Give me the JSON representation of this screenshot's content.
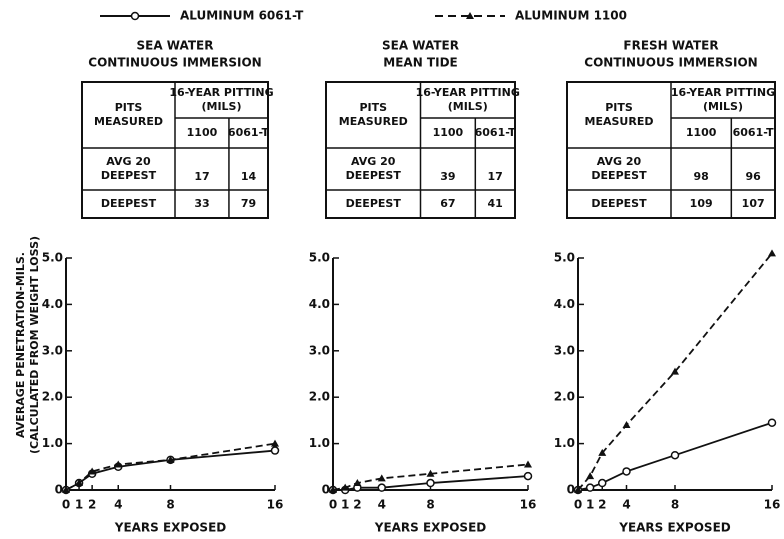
{
  "chart_data": [
    {
      "type": "line",
      "title": [
        "SEA WATER",
        "CONTINUOUS IMMERSION"
      ],
      "table": {
        "head": [
          "PITS MEASURED",
          "16-YEAR PITTING (MILS)"
        ],
        "sub": [
          "1100",
          "6061-T"
        ],
        "rows": [
          [
            "AVG 20 DEEPEST",
            "17",
            "14"
          ],
          [
            "DEEPEST",
            "33",
            "79"
          ]
        ]
      },
      "ylabel": [
        "AVERAGE PENETRATION-MILS.",
        "(CALCULATED FROM WEIGHT LOSS)"
      ],
      "xlabel": "YEARS EXPOSED",
      "x": [
        0,
        1,
        2,
        4,
        8,
        16
      ],
      "xlim": [
        0,
        16
      ],
      "xticks": [
        0,
        1,
        2,
        4,
        8,
        16
      ],
      "ylim": [
        0,
        5
      ],
      "yticks": [
        0,
        {
          "value": 1,
          "label": "1.0"
        },
        {
          "value": 2,
          "label": "2.0"
        },
        {
          "value": 3,
          "label": "3.0"
        },
        {
          "value": 4,
          "label": "4.0"
        },
        {
          "value": 5,
          "label": "5.0"
        }
      ],
      "series": [
        {
          "name": "ALUMINUM 6061-T",
          "color": "#111",
          "dash": false,
          "marker": "circle",
          "values": [
            0,
            0.15,
            0.35,
            0.5,
            0.65,
            0.85
          ]
        },
        {
          "name": "ALUMINUM 1100",
          "color": "#111",
          "dash": true,
          "marker": "triangle",
          "values": [
            0,
            0.15,
            0.4,
            0.55,
            0.65,
            1.0
          ]
        }
      ]
    },
    {
      "type": "line",
      "title": [
        "SEA WATER",
        "MEAN TIDE"
      ],
      "table": {
        "head": [
          "PITS MEASURED",
          "16-YEAR PITTING (MILS)"
        ],
        "sub": [
          "1100",
          "6061-T"
        ],
        "rows": [
          [
            "AVG 20 DEEPEST",
            "39",
            "17"
          ],
          [
            "DEEPEST",
            "67",
            "41"
          ]
        ]
      },
      "xlabel": "YEARS EXPOSED",
      "x": [
        0,
        1,
        2,
        4,
        8,
        16
      ],
      "xlim": [
        0,
        16
      ],
      "xticks": [
        0,
        1,
        2,
        4,
        8,
        16
      ],
      "ylim": [
        0,
        5
      ],
      "yticks": [
        0,
        {
          "value": 1,
          "label": "1.0"
        },
        {
          "value": 2,
          "label": "2.0"
        },
        {
          "value": 3,
          "label": "3.0"
        },
        {
          "value": 4,
          "label": "4.0"
        },
        {
          "value": 5,
          "label": "5.0"
        }
      ],
      "series": [
        {
          "name": "ALUMINUM 6061-T",
          "color": "#111",
          "dash": false,
          "marker": "circle",
          "values": [
            0,
            0,
            0.05,
            0.05,
            0.15,
            0.3
          ]
        },
        {
          "name": "ALUMINUM 1100",
          "color": "#111",
          "dash": true,
          "marker": "triangle",
          "values": [
            0,
            0.05,
            0.15,
            0.25,
            0.35,
            0.55
          ]
        }
      ]
    },
    {
      "type": "line",
      "title": [
        "FRESH WATER",
        "CONTINUOUS IMMERSION"
      ],
      "table": {
        "head": [
          "PITS MEASURED",
          "16-YEAR PITTING (MILS)"
        ],
        "sub": [
          "1100",
          "6061-T"
        ],
        "rows": [
          [
            "AVG 20 DEEPEST",
            "98",
            "96"
          ],
          [
            "DEEPEST",
            "109",
            "107"
          ]
        ]
      },
      "xlabel": "YEARS EXPOSED",
      "x": [
        0,
        1,
        2,
        4,
        8,
        16
      ],
      "xlim": [
        0,
        16
      ],
      "xticks": [
        0,
        1,
        2,
        4,
        8,
        16
      ],
      "ylim": [
        0,
        5
      ],
      "yticks": [
        0,
        {
          "value": 1,
          "label": "1.0"
        },
        {
          "value": 2,
          "label": "2.0"
        },
        {
          "value": 3,
          "label": "3.0"
        },
        {
          "value": 4,
          "label": "4.0"
        },
        {
          "value": 5,
          "label": "5.0"
        }
      ],
      "series": [
        {
          "name": "ALUMINUM 6061-T",
          "color": "#111",
          "dash": false,
          "marker": "circle",
          "values": [
            0,
            0.05,
            0.15,
            0.4,
            0.75,
            1.45
          ]
        },
        {
          "name": "ALUMINUM 1100",
          "color": "#111",
          "dash": true,
          "marker": "triangle",
          "values": [
            0,
            0.3,
            0.8,
            1.4,
            2.55,
            5.1
          ]
        }
      ]
    }
  ]
}
